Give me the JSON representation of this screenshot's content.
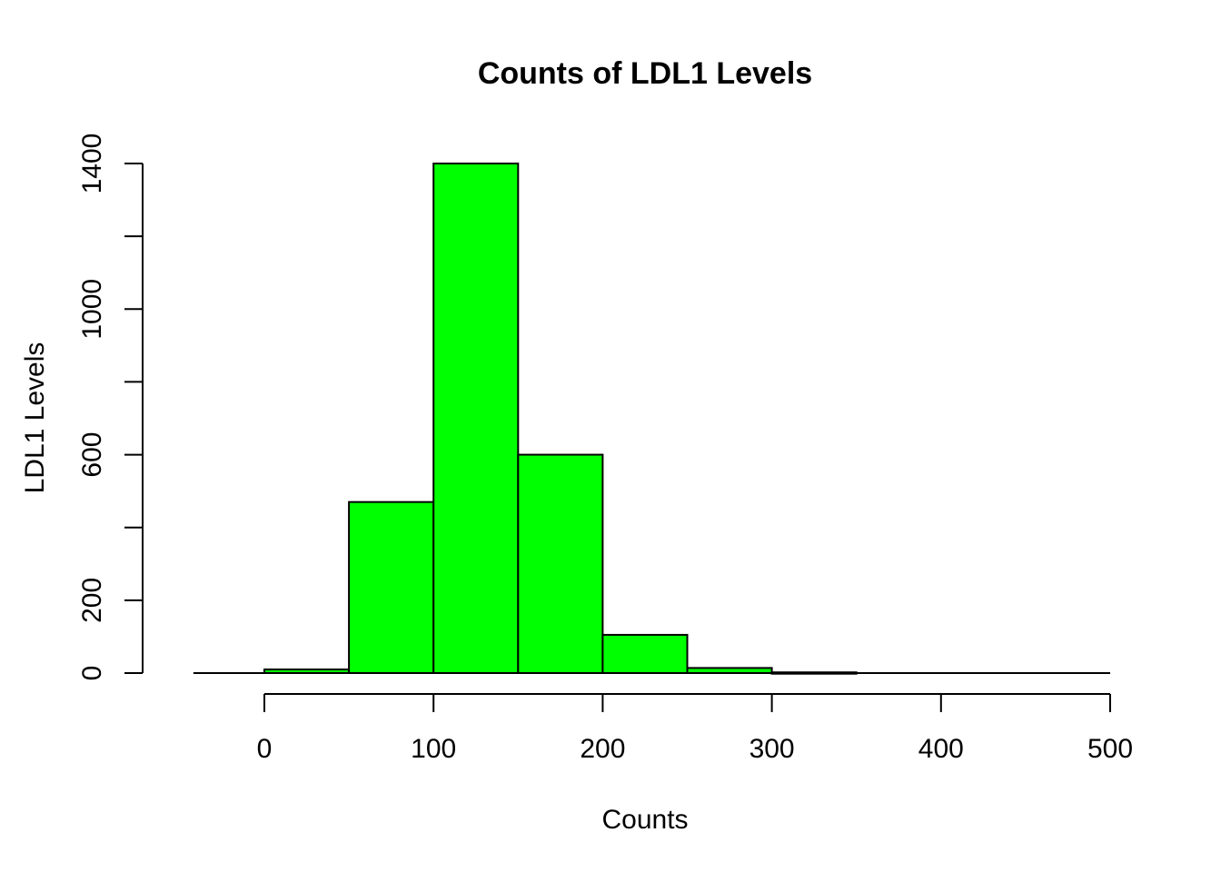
{
  "chart_data": {
    "type": "bar",
    "title": "Counts of LDL1 Levels",
    "xlabel": "Counts",
    "ylabel": "LDL1 Levels",
    "bar_color": "#00FF00",
    "border_color": "#000000",
    "bins": [
      {
        "x0": 0,
        "x1": 50,
        "value": 10
      },
      {
        "x0": 50,
        "x1": 100,
        "value": 470
      },
      {
        "x0": 100,
        "x1": 150,
        "value": 1400
      },
      {
        "x0": 150,
        "x1": 200,
        "value": 600
      },
      {
        "x0": 200,
        "x1": 250,
        "value": 105
      },
      {
        "x0": 250,
        "x1": 300,
        "value": 14
      },
      {
        "x0": 300,
        "x1": 350,
        "value": 2
      },
      {
        "x0": 350,
        "x1": 400,
        "value": 0
      },
      {
        "x0": 400,
        "x1": 450,
        "value": 0
      },
      {
        "x0": 450,
        "x1": 500,
        "value": 0
      }
    ],
    "xlim": [
      -50,
      500
    ],
    "ylim": [
      0,
      1400
    ],
    "x_ticks": [
      0,
      100,
      200,
      300,
      400,
      500
    ],
    "x_tick_labels": [
      "0",
      "100",
      "200",
      "300",
      "400",
      "500"
    ],
    "y_ticks": [
      0,
      200,
      400,
      600,
      800,
      1000,
      1200,
      1400
    ],
    "y_tick_labels": [
      "0",
      "200",
      "",
      "600",
      "",
      "1000",
      "",
      "1400"
    ],
    "grid": false,
    "legend": "none"
  }
}
